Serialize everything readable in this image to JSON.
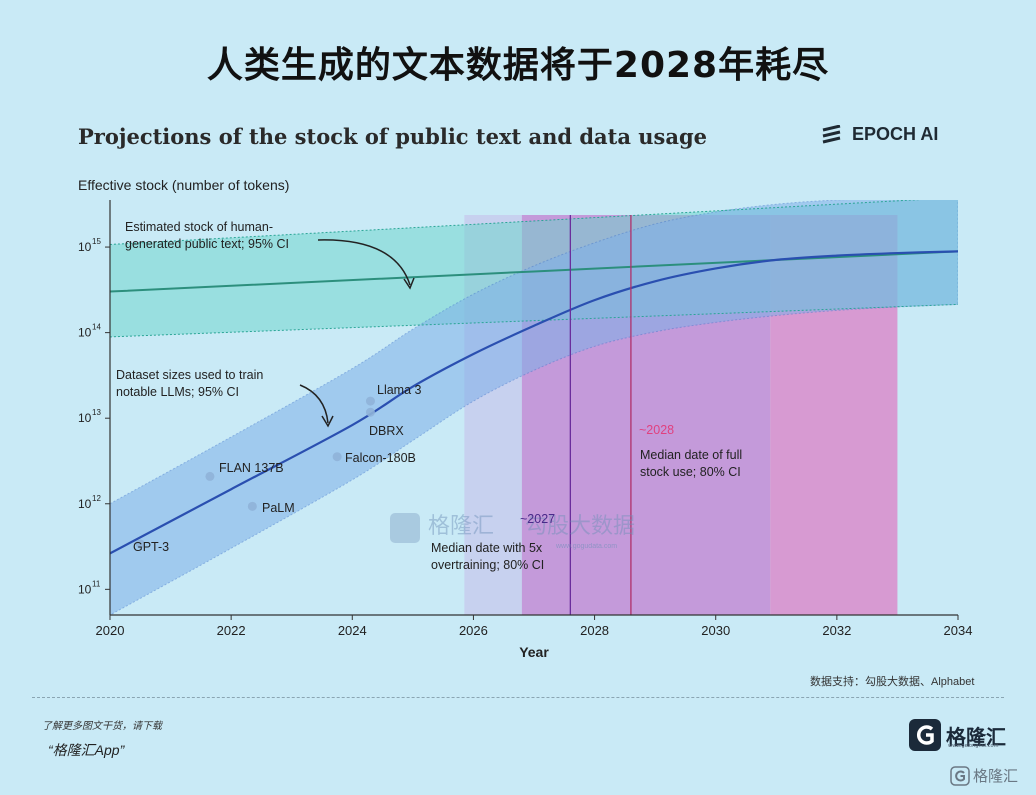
{
  "headline": "人类生成的文本数据将于2028年耗尽",
  "brand": {
    "name": "EPOCH AI"
  },
  "source": "数据支持：勾股大数据、Alphabet",
  "footer": {
    "note": "了解更多图文干货，请下载",
    "app": "“格隆汇App”",
    "logo_text": "格隆汇",
    "logo_sub": "www.gelonghui.com",
    "corner_text": "格隆汇"
  },
  "watermark": {
    "cn": "格隆汇",
    "cn2": "勾股大数据",
    "url": "www.gogudata.com"
  },
  "colors": {
    "background": "#c9eaf6",
    "stock_band": "#69d3c9",
    "stock_line": "#2c8f7d",
    "dataset_band": "#7fb0e8",
    "dataset_line": "#2a4fb0",
    "region_2026": "#c7cbee",
    "region_2027": "#c17fd0",
    "region_2028": "#d98ccb",
    "accent_2028": "#e0417f"
  },
  "chart_data": {
    "type": "line",
    "title": "Projections of the stock of public text and data usage",
    "ylabel": "Effective stock (number of tokens)",
    "xlabel": "Year",
    "y_scale": "log10",
    "xlim": [
      2020,
      2034
    ],
    "ylim_log10": [
      10.7,
      15.55
    ],
    "x_ticks": [
      "2020",
      "2022",
      "2024",
      "2026",
      "2028",
      "2030",
      "2032",
      "2034"
    ],
    "y_ticks": [
      {
        "label": "10",
        "exp": "11",
        "value": 11
      },
      {
        "label": "10",
        "exp": "12",
        "value": 12
      },
      {
        "label": "10",
        "exp": "13",
        "value": 13
      },
      {
        "label": "10",
        "exp": "14",
        "value": 14
      },
      {
        "label": "10",
        "exp": "15",
        "value": 15
      }
    ],
    "series": [
      {
        "name": "Estimated stock of human-generated public text",
        "ci": "95% CI",
        "x": [
          2020,
          2034
        ],
        "median_log10": [
          14.48,
          14.95
        ],
        "lower_log10": [
          13.95,
          14.33
        ],
        "upper_log10": [
          15.03,
          15.58
        ]
      },
      {
        "name": "Dataset sizes used to train notable LLMs",
        "ci": "95% CI",
        "x": [
          2020,
          2022,
          2024,
          2025,
          2026,
          2027,
          2028,
          2029,
          2030,
          2031,
          2032,
          2033,
          2034
        ],
        "median_log10": [
          11.42,
          12.17,
          12.92,
          13.37,
          13.75,
          14.08,
          14.38,
          14.6,
          14.75,
          14.85,
          14.9,
          14.93,
          14.95
        ],
        "lower_log10": [
          10.7,
          11.48,
          12.28,
          12.74,
          13.2,
          13.56,
          13.84,
          14.01,
          14.12,
          14.2,
          14.26,
          14.3,
          14.33
        ],
        "upper_log10": [
          12.0,
          12.78,
          13.58,
          14.04,
          14.45,
          14.78,
          15.05,
          15.27,
          15.41,
          15.5,
          15.55,
          15.57,
          15.58
        ]
      }
    ],
    "models": [
      {
        "name": "GPT-3",
        "year": 2020.5,
        "log10": 11.53
      },
      {
        "name": "FLAN 137B",
        "year": 2021.65,
        "log10": 12.32
      },
      {
        "name": "PaLM",
        "year": 2022.35,
        "log10": 11.97
      },
      {
        "name": "Falcon-180B",
        "year": 2023.75,
        "log10": 12.55
      },
      {
        "name": "DBRX",
        "year": 2024.3,
        "log10": 13.07
      },
      {
        "name": "Llama 3",
        "year": 2024.3,
        "log10": 13.2
      }
    ],
    "regions": [
      {
        "name": "overtraining-ci-outer",
        "from": 2025.85,
        "to": 2026.8
      },
      {
        "name": "overtraining-ci",
        "from": 2026.8,
        "to": 2030.9
      },
      {
        "name": "full-use-ci",
        "from": 2030.9,
        "to": 2033.0
      }
    ],
    "markers": [
      {
        "label": "~2027",
        "year": 2027.6,
        "desc": "Median date with 5x overtraining; 80% CI"
      },
      {
        "label": "~2028",
        "year": 2028.6,
        "desc": "Median date of full stock use; 80% CI"
      }
    ],
    "annotations": {
      "stock": [
        "Estimated stock of human-",
        "generated public text; 95% CI"
      ],
      "dataset": [
        "Dataset sizes used to train",
        "notable LLMs; 95% CI"
      ],
      "overtraining": [
        "Median date with 5x",
        "overtraining; 80% CI"
      ],
      "fulluse": [
        "Median date of full",
        "stock use; 80% CI"
      ]
    }
  }
}
